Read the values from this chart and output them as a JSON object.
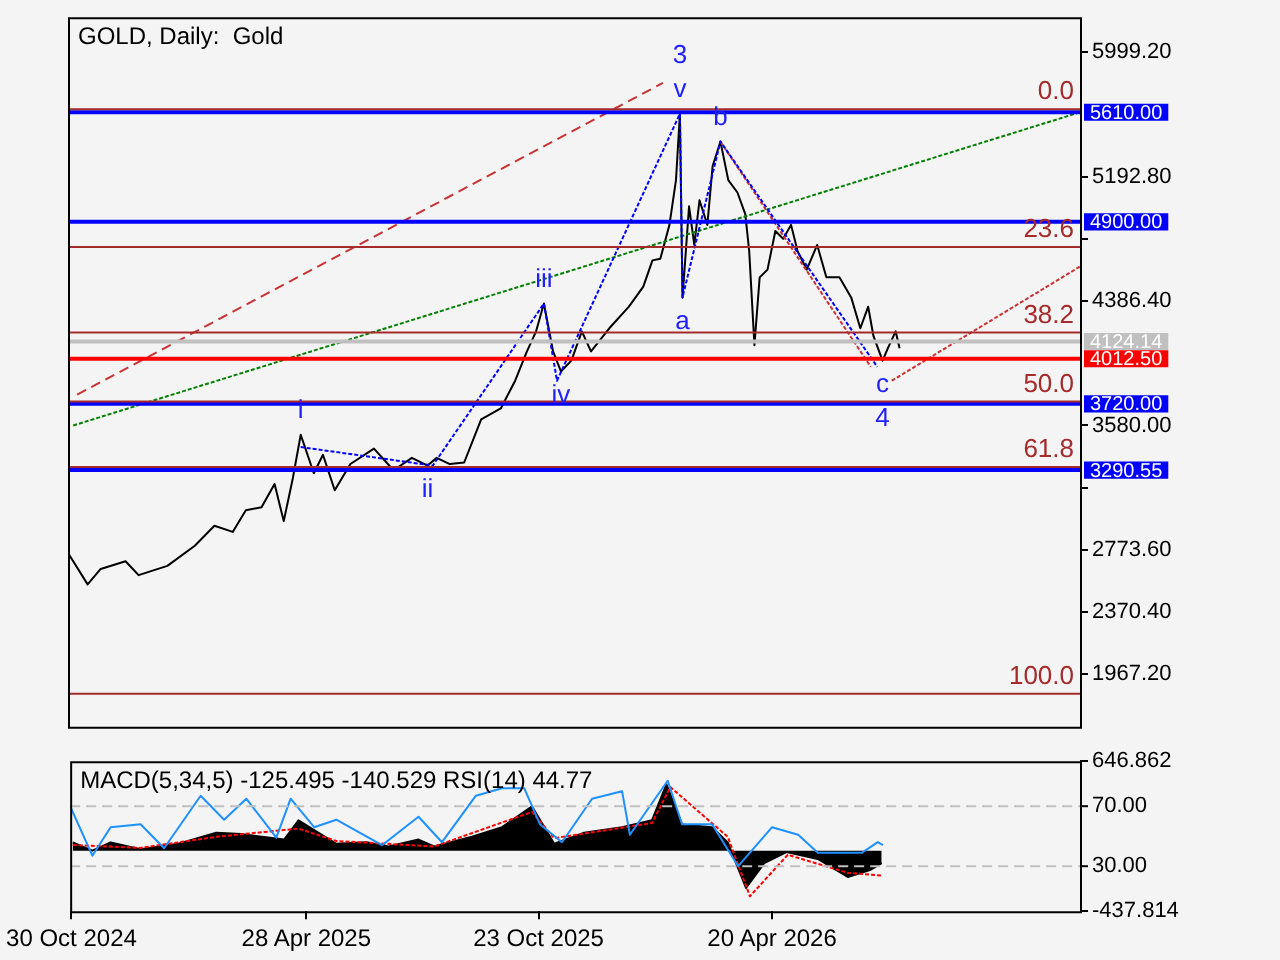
{
  "chart_data": [
    {
      "type": "line",
      "title": "GOLD, Daily:  Gold",
      "xlim": [
        "2024-10-29",
        "2026-12-12"
      ],
      "ylim": [
        1627,
        6226
      ],
      "yticks": [
        {
          "value": 5999.2,
          "label": "5999.20"
        },
        {
          "value": 5192.8,
          "label": "5192.80"
        },
        {
          "value": 4789.6,
          "label": null
        },
        {
          "value": 4386.4,
          "label": "4386.40"
        },
        {
          "value": 3580,
          "label": "3580.00"
        },
        {
          "value": 3176.8,
          "label": null
        },
        {
          "value": 2773.6,
          "label": "2773.60"
        },
        {
          "value": 2370.4,
          "label": "2370.40"
        },
        {
          "value": 1967.2,
          "label": "1967.20"
        }
      ],
      "tick_labels": "y",
      "legend": false,
      "grid": false,
      "series": [
        {
          "color": "#000000",
          "x": [
            "2024-10-30",
            "2024-11-13",
            "2024-11-23",
            "2024-12-12",
            "2024-12-22",
            "2025-01-13",
            "2025-02-03",
            "2025-02-18",
            "2025-03-04",
            "2025-03-14",
            "2025-03-26",
            "2025-04-05",
            "2025-04-12",
            "2025-04-19",
            "2025-04-25",
            "2025-05-05",
            "2025-05-12",
            "2025-05-21",
            "2025-06-02",
            "2025-06-20",
            "2025-07-05",
            "2025-07-19",
            "2025-07-31",
            "2025-08-07",
            "2025-08-17",
            "2025-08-28",
            "2025-09-10",
            "2025-09-25",
            "2025-10-06",
            "2025-10-15",
            "2025-10-22",
            "2025-10-28",
            "2025-11-04",
            "2025-11-10",
            "2025-11-18",
            "2025-11-26",
            "2025-12-03",
            "2025-12-17",
            "2026-01-01",
            "2026-01-12",
            "2026-01-19",
            "2026-01-25",
            "2026-02-01",
            "2026-02-06",
            "2026-02-09",
            "2026-02-11",
            "2026-02-16",
            "2026-02-20",
            "2026-02-24",
            "2026-03-02",
            "2026-03-06",
            "2026-03-12",
            "2026-03-18",
            "2026-03-25",
            "2026-03-31",
            "2026-04-03",
            "2026-04-07",
            "2026-04-11",
            "2026-04-17",
            "2026-04-23",
            "2026-04-29",
            "2026-05-05",
            "2026-05-10",
            "2026-05-17",
            "2026-05-25",
            "2026-06-01",
            "2026-06-11",
            "2026-06-20",
            "2026-06-27",
            "2026-07-03",
            "2026-07-07",
            "2026-07-14",
            "2026-07-18",
            "2026-07-24",
            "2026-07-27"
          ],
          "values": [
            2740,
            2550,
            2650,
            2700,
            2610,
            2670,
            2800,
            2930,
            2890,
            3030,
            3050,
            3200,
            2960,
            3240,
            3520,
            3270,
            3390,
            3160,
            3330,
            3430,
            3290,
            3370,
            3320,
            3370,
            3330,
            3340,
            3620,
            3690,
            3870,
            4060,
            4190,
            4370,
            4060,
            3930,
            4000,
            4190,
            4060,
            4210,
            4350,
            4480,
            4650,
            4660,
            4880,
            5170,
            5600,
            4410,
            5000,
            4750,
            5040,
            4880,
            5260,
            5420,
            5170,
            5090,
            4950,
            4710,
            4100,
            4540,
            4590,
            4840,
            4790,
            4880,
            4710,
            4590,
            4750,
            4540,
            4540,
            4410,
            4210,
            4350,
            4160,
            4000,
            4080,
            4190,
            4080
          ]
        },
        {
          "color": "#008000",
          "line_style": "dotted",
          "x": [
            "2024-11-02",
            "2026-12-12"
          ],
          "values": [
            3580,
            5610
          ]
        },
        {
          "color": "#c83232",
          "line_style": "dashed",
          "x": [
            "2024-11-05",
            "2026-01-27"
          ],
          "values": [
            3780,
            5800
          ]
        },
        {
          "color": "#c83232",
          "line_style": "dotted",
          "x": [
            "2026-07-21",
            "2026-12-12"
          ],
          "values": [
            3870,
            4610
          ]
        },
        {
          "color": "#c83232",
          "line_style": "dotted",
          "x": [
            "2026-03-12",
            "2026-07-05"
          ],
          "values": [
            5420,
            3960
          ]
        },
        {
          "color": "#0000ff",
          "line_style": "dotted",
          "x": [
            "2025-04-25",
            "2025-08-04",
            "2025-10-28",
            "2025-11-07",
            "2026-02-09",
            "2026-02-11",
            "2026-03-12",
            "2026-07-10"
          ],
          "values": [
            3440,
            3320,
            4370,
            3870,
            5600,
            4410,
            5420,
            3960
          ]
        }
      ],
      "ref_lines": [
        {
          "axis": "y",
          "value": 5630,
          "color": "#a52a2a"
        },
        {
          "axis": "y",
          "value": 4736,
          "color": "#a52a2a"
        },
        {
          "axis": "y",
          "value": 4183,
          "color": "#a52a2a"
        },
        {
          "axis": "y",
          "value": 3736,
          "color": "#a52a2a"
        },
        {
          "axis": "y",
          "value": 3310,
          "color": "#a52a2a"
        },
        {
          "axis": "y",
          "value": 1841,
          "color": "#a52a2a"
        },
        {
          "axis": "y",
          "value": 5610,
          "label": "5610.00",
          "color": "#0000ff"
        },
        {
          "axis": "y",
          "value": 4900,
          "label": "4900.00",
          "color": "#0000ff"
        },
        {
          "axis": "y",
          "value": 4124.14,
          "label": "4124.14",
          "color": "#c0c0c0"
        },
        {
          "axis": "y",
          "value": 4012.5,
          "label": "4012.50",
          "color": "#ff0000"
        },
        {
          "axis": "y",
          "value": 3720,
          "label": "3720.00",
          "color": "#0000ff"
        },
        {
          "axis": "y",
          "value": 3290.55,
          "label": "3290.55",
          "color": "#0000ff"
        }
      ],
      "annotations": [
        {
          "text": "i",
          "x": "2025-04-25",
          "y": 3520
        },
        {
          "text": "ii",
          "x": "2025-07-31",
          "y": 3320
        },
        {
          "text": "iii",
          "x": "2025-10-28",
          "y": 4370
        },
        {
          "text": "iv",
          "x": "2025-11-10",
          "y": 3930
        },
        {
          "text": "v",
          "x": "2026-02-09",
          "y": 5600
        },
        {
          "text": "a",
          "x": "2026-02-11",
          "y": 4410
        },
        {
          "text": "b",
          "x": "2026-03-12",
          "y": 5420
        },
        {
          "text": "c",
          "x": "2026-07-14",
          "y": 4000
        },
        {
          "text": "3",
          "x": "2026-02-09",
          "y": 5600
        },
        {
          "text": "4",
          "x": "2026-07-14",
          "y": 4000
        },
        {
          "text": "0.0",
          "x": "2026-12-12",
          "y": 5630
        },
        {
          "text": "23.6",
          "x": "2026-12-12",
          "y": 4736
        },
        {
          "text": "38.2",
          "x": "2026-12-12",
          "y": 4183
        },
        {
          "text": "50.0",
          "x": "2026-12-12",
          "y": 3736
        },
        {
          "text": "61.8",
          "x": "2026-12-12",
          "y": 3310
        },
        {
          "text": "100.0",
          "x": "2026-12-12",
          "y": 1841
        }
      ]
    },
    {
      "type": "area",
      "title": "MACD(5,34,5) -125.495 -140.529 RSI(14) 44.77",
      "xlim": [
        "2024-10-29",
        "2026-12-12"
      ],
      "xticks": [
        {
          "value": "2024-10-30",
          "label": "30 Oct 2024"
        },
        {
          "value": "2025-04-28",
          "label": "28 Apr 2025"
        },
        {
          "value": "2025-10-23",
          "label": "23 Oct 2025"
        },
        {
          "value": "2026-04-20",
          "label": "20 Apr 2026"
        }
      ],
      "ylim": [
        -437.814,
        646.862
      ],
      "yticks": [
        646.862,
        -437.814
      ],
      "y2lim": [
        0,
        100
      ],
      "y2ticks": [
        {
          "value": 70,
          "label": "70.00"
        },
        {
          "value": 30,
          "label": "30.00"
        }
      ],
      "legend": false,
      "grid": false,
      "series": [
        {
          "color": "#000000",
          "x": [
            "2024-10-31",
            "2024-11-15",
            "2024-11-29",
            "2024-12-22",
            "2025-01-20",
            "2025-02-18",
            "2025-03-09",
            "2025-04-11",
            "2025-04-22",
            "2025-05-09",
            "2025-05-21",
            "2025-06-13",
            "2025-06-30",
            "2025-07-23",
            "2025-08-04",
            "2025-09-02",
            "2025-09-25",
            "2025-10-18",
            "2025-11-04",
            "2025-11-27",
            "2025-12-26",
            "2026-01-18",
            "2026-01-29",
            "2026-02-10",
            "2026-03-05",
            "2026-03-17",
            "2026-03-31",
            "2026-04-14",
            "2026-05-01",
            "2026-05-25",
            "2026-06-17",
            "2026-07-04",
            "2026-07-13"
          ],
          "values": [
            60,
            0,
            60,
            10,
            50,
            130,
            120,
            80,
            220,
            120,
            50,
            60,
            30,
            80,
            30,
            100,
            170,
            320,
            50,
            130,
            170,
            220,
            480,
            190,
            170,
            60,
            -270,
            -90,
            -10,
            -60,
            -190,
            -140,
            -90
          ]
        },
        {
          "type": "line",
          "color": "#ff0000",
          "line_style": "dotted",
          "x": [
            "2024-10-31",
            "2024-12-22",
            "2025-02-18",
            "2025-04-22",
            "2025-05-21",
            "2025-08-04",
            "2025-10-18",
            "2025-11-04",
            "2026-01-18",
            "2026-02-01",
            "2026-03-17",
            "2026-04-03",
            "2026-05-02",
            "2026-06-17",
            "2026-07-13"
          ],
          "values": [
            40,
            20,
            100,
            160,
            70,
            30,
            280,
            90,
            200,
            460,
            100,
            -330,
            -30,
            -160,
            -180
          ]
        },
        {
          "type": "line",
          "color": "#1e90ff",
          "axis": "y2",
          "x": [
            "2024-10-29",
            "2024-11-15",
            "2024-11-29",
            "2024-12-22",
            "2025-01-09",
            "2025-02-06",
            "2025-02-24",
            "2025-03-13",
            "2025-04-05",
            "2025-04-16",
            "2025-05-04",
            "2025-05-21",
            "2025-06-25",
            "2025-07-23",
            "2025-08-10",
            "2025-09-05",
            "2025-09-25",
            "2025-10-12",
            "2025-10-24",
            "2025-11-10",
            "2025-12-03",
            "2025-12-26",
            "2026-01-01",
            "2026-01-30",
            "2026-02-10",
            "2026-03-05",
            "2026-03-25",
            "2026-04-20",
            "2026-05-10",
            "2026-05-25",
            "2026-06-17",
            "2026-06-28",
            "2026-07-10",
            "2026-07-14"
          ],
          "values": [
            70,
            37,
            56,
            58,
            42,
            77,
            61,
            75,
            49,
            75,
            56,
            61,
            44,
            63,
            46,
            77,
            82,
            82,
            58,
            46,
            75,
            80,
            51,
            87,
            58,
            58,
            30,
            56,
            51,
            39,
            39,
            39,
            46,
            44
          ]
        }
      ],
      "ref_lines": [
        {
          "axis": "y2",
          "value": 70,
          "color": "#c0c0c0",
          "line_style": "dashed"
        },
        {
          "axis": "y2",
          "value": 30,
          "color": "#c0c0c0",
          "line_style": "dashed"
        }
      ]
    }
  ]
}
